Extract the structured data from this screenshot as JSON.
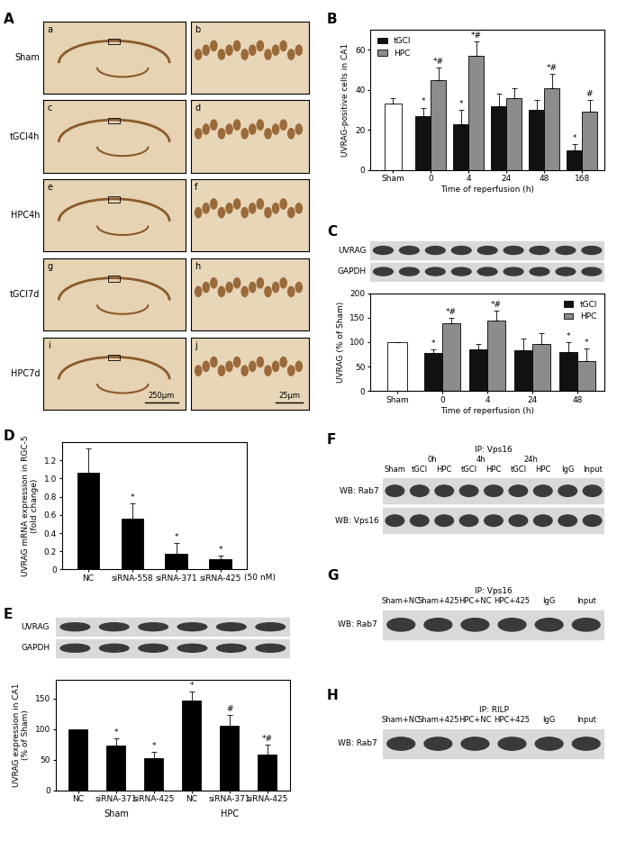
{
  "panel_A": {
    "panel": "A",
    "rows": [
      {
        "label": "Sham",
        "images": [
          "a",
          "b"
        ]
      },
      {
        "label": "tGCI4h",
        "images": [
          "c",
          "d"
        ]
      },
      {
        "label": "HPC4h",
        "images": [
          "e",
          "f"
        ]
      },
      {
        "label": "tGCI7d",
        "images": [
          "g",
          "h"
        ]
      },
      {
        "label": "HPC7d",
        "images": [
          "i",
          "j"
        ]
      }
    ],
    "scale_bars": [
      "250μm",
      "25μm"
    ]
  },
  "chart_data": [
    {
      "panel": "B",
      "type": "bar",
      "y_label": "UVRAG-positive cells in CA1",
      "x_label": "Time of reperfusion (h)",
      "categories": [
        "Sham",
        "0",
        "4",
        "24",
        "48",
        "168"
      ],
      "sham": {
        "value": 33,
        "error": 3,
        "color": "#ffffff"
      },
      "series": [
        {
          "name": "tGCI",
          "color": "#111111",
          "values": [
            null,
            27,
            23,
            32,
            30,
            10
          ],
          "errors": [
            null,
            4,
            7,
            6,
            5,
            3
          ],
          "marks": [
            null,
            "*",
            "*",
            null,
            null,
            "*"
          ]
        },
        {
          "name": "HPC",
          "color": "#8c8c8c",
          "values": [
            null,
            45,
            57,
            36,
            41,
            29
          ],
          "errors": [
            null,
            6,
            7,
            5,
            7,
            6
          ],
          "marks": [
            null,
            "*#",
            "*#",
            null,
            "*#",
            "#"
          ]
        }
      ],
      "ylim": [
        0,
        70
      ],
      "yticks": [
        0,
        20,
        40,
        60
      ],
      "legend": "upper left"
    },
    {
      "panel": "C",
      "type": "bar",
      "blot_rows": [
        "UVRAG",
        "GAPDH"
      ],
      "y_label": "UVRAG (% of Sham)",
      "x_label": "Time of reperfusion (h)",
      "categories": [
        "Sham",
        "0",
        "4",
        "24",
        "48"
      ],
      "sham": {
        "value": 100,
        "error": 0,
        "color": "#ffffff"
      },
      "series": [
        {
          "name": "tGCI",
          "color": "#111111",
          "values": [
            null,
            78,
            86,
            83,
            80
          ],
          "errors": [
            null,
            8,
            10,
            25,
            20
          ],
          "marks": [
            null,
            "*",
            null,
            null,
            "*"
          ]
        },
        {
          "name": "HPC",
          "color": "#8c8c8c",
          "values": [
            null,
            138,
            145,
            96,
            62
          ],
          "errors": [
            null,
            12,
            20,
            22,
            25
          ],
          "marks": [
            null,
            "*#",
            "*#",
            null,
            "*"
          ]
        }
      ],
      "ylim": [
        0,
        200
      ],
      "yticks": [
        0,
        50,
        100,
        150,
        200
      ],
      "legend": "upper right"
    },
    {
      "panel": "D",
      "type": "bar",
      "y_label": "UVRAG mRNA expression in RGC-5\n(fold change)",
      "categories": [
        "NC",
        "siRNA-558",
        "siRNA-371",
        "siRNA-425"
      ],
      "note": "(50 nM)",
      "values": [
        1.06,
        0.56,
        0.17,
        0.11
      ],
      "errors": [
        0.27,
        0.17,
        0.12,
        0.04
      ],
      "marks": [
        null,
        "*",
        "*",
        "*"
      ],
      "color": "#000000",
      "ylim": [
        0,
        1.4
      ],
      "yticks": [
        0,
        0.2,
        0.4,
        0.6,
        0.8,
        {
          "value": 1,
          "label": "1.0"
        },
        1.2
      ]
    },
    {
      "panel": "E",
      "type": "bar",
      "blot_rows": [
        "UVRAG",
        "GAPDH"
      ],
      "y_label": "UVRAG expression in CA1\n(% of Sham)",
      "categories": [
        "NC",
        "siRNA-371",
        "siRNA-425",
        "NC",
        "siRNA-371",
        "siRNA-425"
      ],
      "groups": [
        "Sham",
        "Sham",
        "Sham",
        "HPC",
        "HPC",
        "HPC"
      ],
      "values": [
        100,
        73,
        53,
        146,
        105,
        59
      ],
      "errors": [
        0,
        12,
        10,
        15,
        18,
        16
      ],
      "marks": [
        null,
        "*",
        "*",
        "*",
        "#",
        "*#"
      ],
      "color": "#000000",
      "ylim": [
        0,
        180
      ],
      "yticks": [
        0,
        50,
        100,
        150
      ]
    }
  ],
  "immunoblots": [
    {
      "panel": "F",
      "ip": "IP: Vps16",
      "groups": [
        null,
        "0h",
        "0h",
        "4h",
        "4h",
        "24h",
        "24h",
        null,
        null
      ],
      "lanes": [
        "Sham",
        "tGCI",
        "HPC",
        "tGCI",
        "HPC",
        "tGCI",
        "HPC",
        "IgG",
        "Input"
      ],
      "rows": [
        "WB: Rab7",
        "WB: Vps16"
      ]
    },
    {
      "panel": "G",
      "ip": "IP: Vps16",
      "lanes": [
        "Sham+NC",
        "Sham+425",
        "HPC+NC",
        "HPC+425",
        "IgG",
        "Input"
      ],
      "rows": [
        "WB: Rab7"
      ]
    },
    {
      "panel": "H",
      "ip": "IP: RILP",
      "lanes": [
        "Sham+NC",
        "Sham+425",
        "HPC+NC",
        "HPC+425",
        "IgG",
        "Input"
      ],
      "rows": [
        "WB: Rab7"
      ]
    }
  ]
}
